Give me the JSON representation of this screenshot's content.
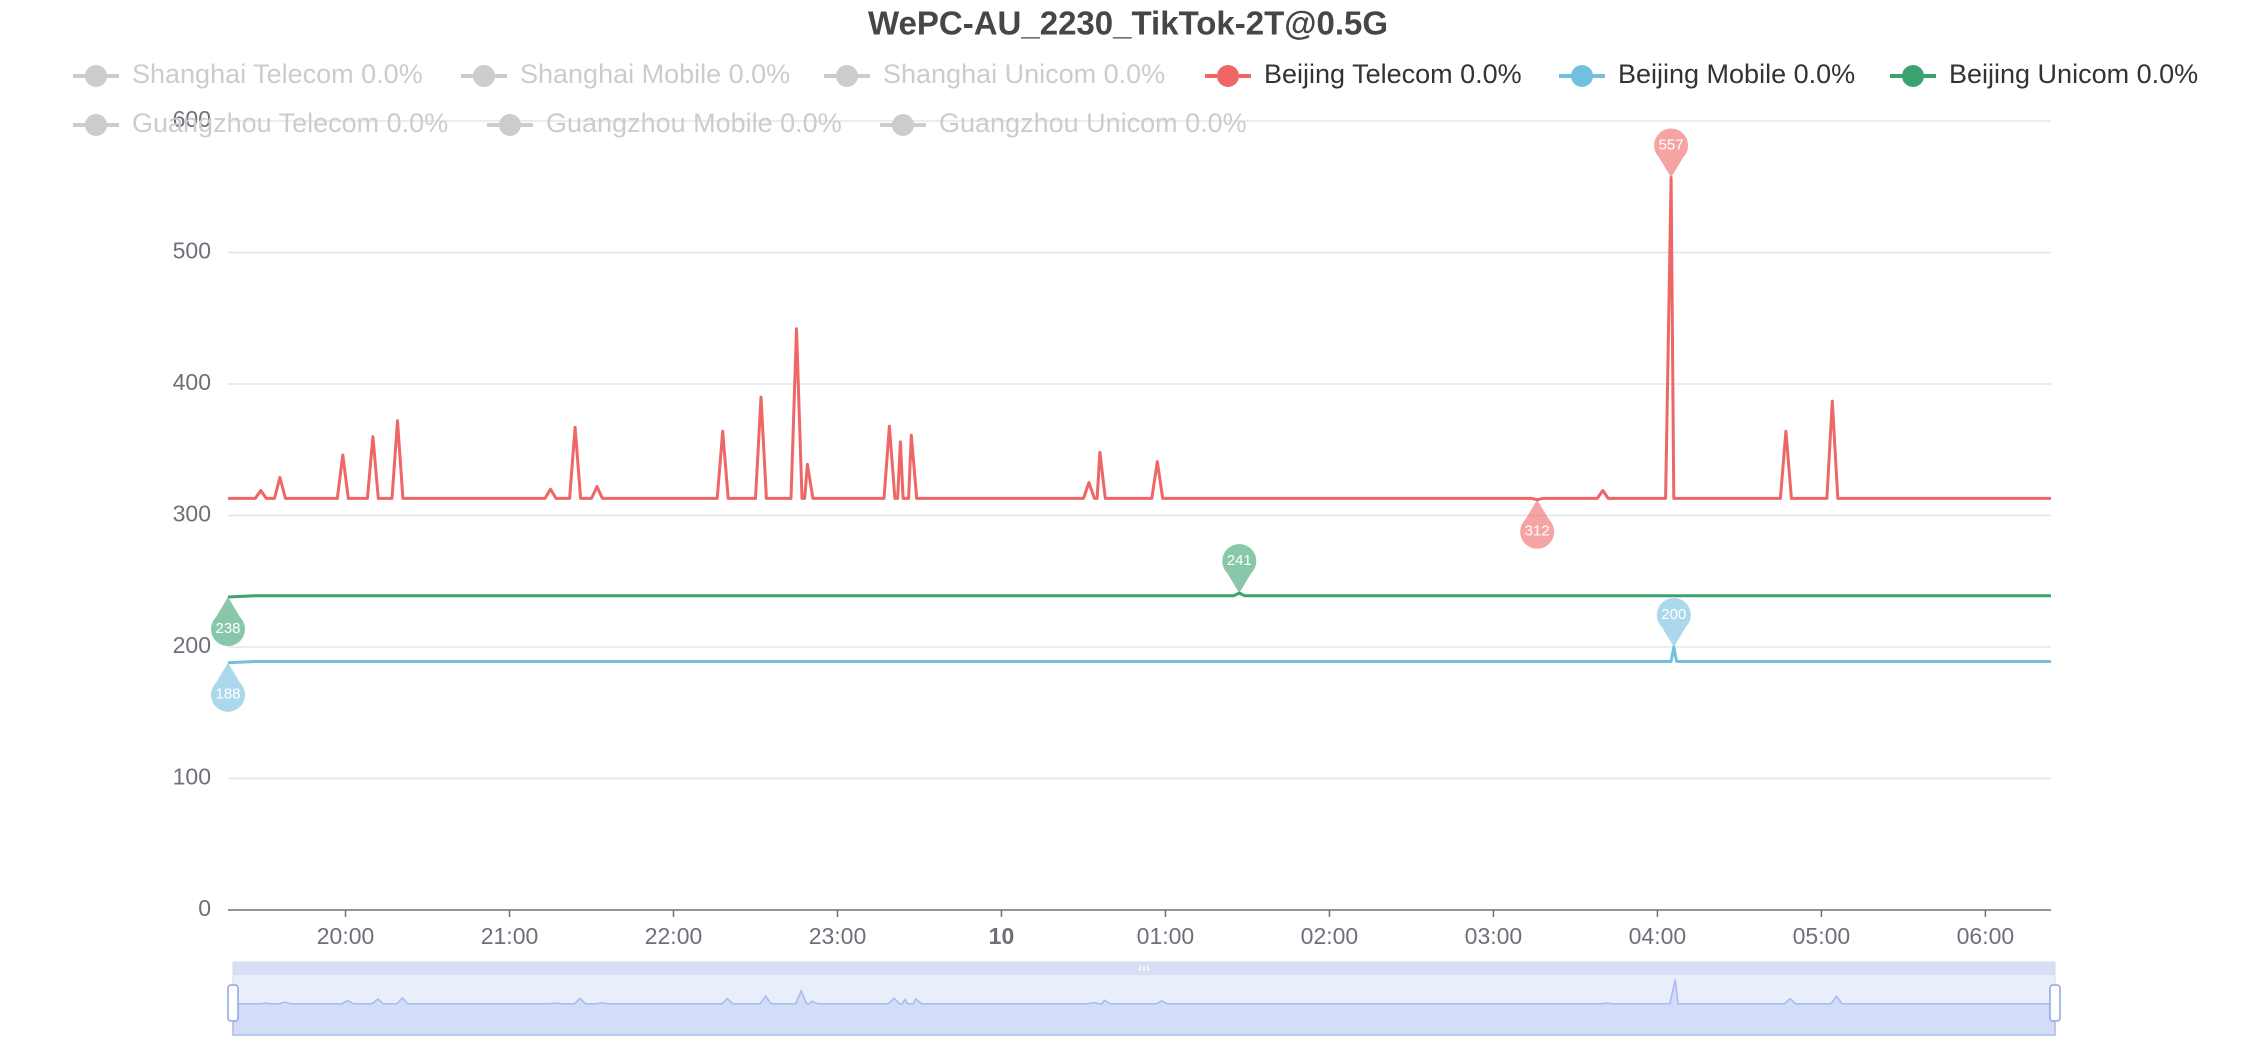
{
  "chart_data": {
    "type": "line",
    "title": "WePC-AU_2230_TikTok-2T@0.5G",
    "x": [
      "19:17",
      "19:27",
      "19:29",
      "19:31",
      "19:34",
      "19:36",
      "19:38",
      "19:57",
      "19:59",
      "20:01",
      "20:08",
      "20:10",
      "20:12",
      "20:17",
      "20:19",
      "20:21",
      "21:13",
      "21:15",
      "21:17",
      "21:22",
      "21:24",
      "21:26",
      "21:30",
      "21:32",
      "21:34",
      "22:16",
      "22:18",
      "22:20",
      "22:30",
      "22:32",
      "22:34",
      "22:43",
      "22:45",
      "22:47",
      "22:48",
      "22:49",
      "22:51",
      "23:17",
      "23:19",
      "23:21",
      "23:22",
      "23:23",
      "23:24",
      "23:26",
      "23:27",
      "23:29",
      "00:30",
      "00:32",
      "00:34",
      "00:35",
      "00:36",
      "00:38",
      "00:55",
      "00:57",
      "00:59",
      "01:25",
      "01:27",
      "01:29",
      "03:14",
      "03:16",
      "03:18",
      "03:38",
      "03:40",
      "03:42",
      "04:03",
      "04:05",
      "04:06",
      "04:07",
      "04:45",
      "04:47",
      "04:49",
      "05:02",
      "05:04",
      "05:06",
      "06:24"
    ],
    "series": [
      {
        "name": "Shanghai Telecom 0.0%",
        "visible": false
      },
      {
        "name": "Shanghai Mobile 0.0%",
        "visible": false
      },
      {
        "name": "Shanghai Unicom 0.0%",
        "visible": false
      },
      {
        "name": "Beijing Telecom 0.0%",
        "color": "#ee6666",
        "visible": true,
        "values": [
          313,
          313,
          319,
          313,
          313,
          329,
          313,
          313,
          346,
          313,
          313,
          360,
          313,
          313,
          372,
          313,
          313,
          320,
          313,
          313,
          367,
          313,
          313,
          322,
          313,
          313,
          364,
          313,
          313,
          390,
          313,
          313,
          442,
          313,
          313,
          339,
          313,
          313,
          368,
          313,
          313,
          356,
          313,
          313,
          361,
          313,
          313,
          325,
          313,
          313,
          348,
          313,
          313,
          341,
          313,
          313,
          313,
          313,
          313,
          312,
          313,
          313,
          319,
          313,
          313,
          557,
          313,
          313,
          313,
          364,
          313,
          313,
          387,
          313,
          313
        ]
      },
      {
        "name": "Beijing Mobile 0.0%",
        "color": "#73c0de",
        "visible": true,
        "values": [
          188,
          189,
          189,
          189,
          189,
          189,
          189,
          189,
          189,
          189,
          189,
          189,
          189,
          189,
          189,
          189,
          189,
          189,
          189,
          189,
          189,
          189,
          189,
          189,
          189,
          189,
          189,
          189,
          189,
          189,
          189,
          189,
          189,
          189,
          189,
          189,
          189,
          189,
          189,
          189,
          189,
          189,
          189,
          189,
          189,
          189,
          189,
          189,
          189,
          189,
          189,
          189,
          189,
          189,
          189,
          189,
          189,
          189,
          189,
          189,
          189,
          189,
          189,
          189,
          189,
          189,
          200,
          189,
          189,
          189,
          189,
          189,
          189,
          189,
          189
        ]
      },
      {
        "name": "Beijing Unicom 0.0%",
        "color": "#3ba272",
        "visible": true,
        "values": [
          238,
          239,
          239,
          239,
          239,
          239,
          239,
          239,
          239,
          239,
          239,
          239,
          239,
          239,
          239,
          239,
          239,
          239,
          239,
          239,
          239,
          239,
          239,
          239,
          239,
          239,
          239,
          239,
          239,
          239,
          239,
          239,
          239,
          239,
          239,
          239,
          239,
          239,
          239,
          239,
          239,
          239,
          239,
          239,
          239,
          239,
          239,
          239,
          239,
          239,
          239,
          239,
          239,
          239,
          239,
          239,
          241,
          239,
          239,
          239,
          239,
          239,
          239,
          239,
          239,
          239,
          239,
          239,
          239,
          239,
          239,
          239,
          239,
          239,
          239
        ]
      },
      {
        "name": "Guangzhou Telecom 0.0%",
        "visible": false
      },
      {
        "name": "Guangzhou Mobile 0.0%",
        "visible": false
      },
      {
        "name": "Guangzhou Unicom 0.0%",
        "visible": false
      }
    ],
    "legend_inactive_color": "#cccccc",
    "xlim": [
      "19:17",
      "06:24"
    ],
    "xticks": [
      "20:00",
      "21:00",
      "22:00",
      "23:00",
      {
        "value": "00:00",
        "label": "10"
      },
      "01:00",
      "02:00",
      "03:00",
      "04:00",
      "05:00",
      "06:00"
    ],
    "ylim": [
      0,
      600
    ],
    "yticks": [
      0,
      100,
      200,
      300,
      400,
      500,
      600
    ],
    "grid": true
  }
}
